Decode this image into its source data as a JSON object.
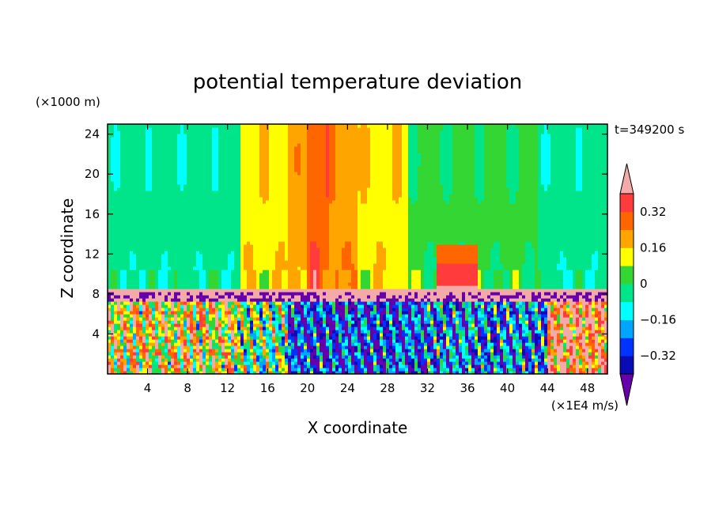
{
  "chart_data": {
    "type": "heatmap",
    "title": "potential temperature deviation",
    "xlabel": "X coordinate",
    "ylabel": "Z coordinate",
    "x_unit": "(×1E4 m/s)",
    "y_unit": "(×1000 m)",
    "time_label": "t=349200 s",
    "xlim": [
      0,
      50
    ],
    "ylim": [
      0,
      25
    ],
    "x_ticks": [
      4,
      8,
      12,
      16,
      20,
      24,
      28,
      32,
      36,
      40,
      44,
      48
    ],
    "y_ticks": [
      4,
      8,
      12,
      16,
      20,
      24
    ],
    "colorbar": {
      "tick_values": [
        0.32,
        0.16,
        0,
        -0.16,
        -0.32
      ],
      "tick_labels": [
        "0.32",
        "0.16",
        "0",
        "−0.16",
        "−0.32"
      ],
      "levels": [
        -0.4,
        -0.32,
        -0.24,
        -0.16,
        -0.08,
        0,
        0.08,
        0.16,
        0.24,
        0.32,
        0.4
      ],
      "colors_low_to_high": [
        "#6600aa",
        "#0b0bb4",
        "#0033ff",
        "#00a5ff",
        "#00ffff",
        "#00e58a",
        "#33d633",
        "#ffff00",
        "#ffa500",
        "#ff6600",
        "#ff3b3b",
        "#f5aaaa"
      ],
      "extend": "both"
    },
    "upper_layer_columns": [
      {
        "x": [
          0,
          13.2
        ],
        "value": -0.05
      },
      {
        "x": [
          13.2,
          18
        ],
        "value": 0.14
      },
      {
        "x": [
          18,
          20
        ],
        "value": 0.2
      },
      {
        "x": [
          20,
          22
        ],
        "value": 0.3
      },
      {
        "x": [
          22,
          25
        ],
        "value": 0.22
      },
      {
        "x": [
          25,
          30
        ],
        "value": 0.14
      },
      {
        "x": [
          30,
          34
        ],
        "value": 0.02
      },
      {
        "x": [
          34,
          43
        ],
        "value": 0.02
      },
      {
        "x": [
          43,
          50
        ],
        "value": -0.05
      }
    ],
    "inversion_layer": {
      "z": [
        8.3,
        8.7
      ],
      "value": 0.5
    },
    "lower_layer_note": "turbulent mixed layer z 0-8.3"
  }
}
